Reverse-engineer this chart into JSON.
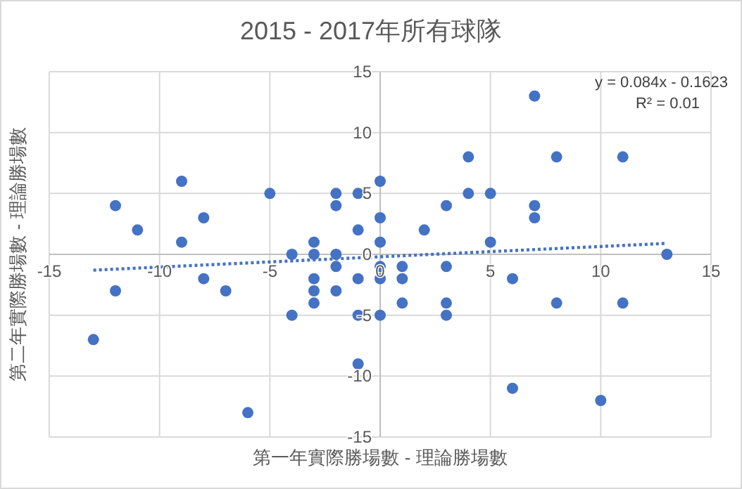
{
  "chart_data": {
    "type": "scatter",
    "title": "2015 - 2017年所有球隊",
    "xlabel": "第一年實際勝場數 - 理論勝場數",
    "ylabel": "第二年實際勝場數 - 理論勝場數",
    "annotations": [
      "y = 0.084x - 0.1623",
      "R² = 0.01"
    ],
    "xlim": [
      -15,
      15
    ],
    "ylim": [
      -15,
      15
    ],
    "xticks": [
      -15,
      -10,
      -5,
      0,
      5,
      10,
      15
    ],
    "yticks": [
      -15,
      -10,
      -5,
      0,
      5,
      10,
      15
    ],
    "grid": true,
    "series": [
      {
        "type": "scatter",
        "color": "#4472c4",
        "marker": "circle",
        "x": [
          -13,
          -12,
          -12,
          -11,
          -9,
          -9,
          -8,
          -8,
          -7,
          -6,
          -5,
          -4,
          -4,
          -3,
          -3,
          -3,
          -3,
          -3,
          -2,
          -2,
          -2,
          -2,
          -2,
          -1,
          -1,
          -1,
          -1,
          -1,
          0,
          0,
          0,
          0,
          0,
          0,
          1,
          1,
          1,
          2,
          3,
          3,
          3,
          3,
          4,
          4,
          5,
          5,
          6,
          6,
          7,
          7,
          7,
          8,
          8,
          10,
          11,
          11,
          13
        ],
        "values": [
          -7,
          4,
          -3,
          2,
          6,
          1,
          3,
          -2,
          -3,
          -13,
          5,
          0,
          -5,
          1,
          0,
          -2,
          -3,
          -4,
          5,
          4,
          0,
          -1,
          -3,
          5,
          2,
          -2,
          -5,
          -9,
          6,
          3,
          1,
          -1,
          -2,
          -5,
          -1,
          -2,
          -4,
          2,
          4,
          -1,
          -4,
          -5,
          8,
          5,
          5,
          1,
          -2,
          -11,
          13,
          4,
          3,
          8,
          -4,
          -12,
          8,
          -4,
          0
        ]
      },
      {
        "type": "line",
        "color": "#4472c4",
        "line_style": "dotted",
        "marker": "none",
        "x": [
          -13,
          13
        ],
        "values": [
          -1.3,
          0.9
        ]
      }
    ]
  }
}
